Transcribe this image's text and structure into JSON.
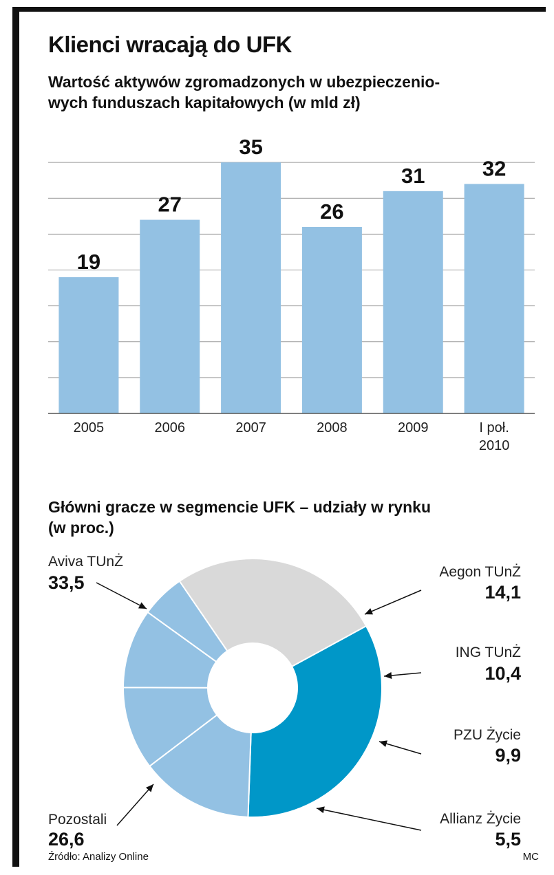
{
  "title": "Klienci wracają do UFK",
  "subtitle_lines": [
    "Wartość aktywów zgromadzonych w ubezpieczenio-",
    "wych funduszach kapitałowych (w mld zł)"
  ],
  "pie_title_lines": [
    "Główni gracze w segmencie UFK – udziały w rynku",
    "(w proc.)"
  ],
  "source": "Źródło: Analizy Online",
  "credit": "MC",
  "colors": {
    "bar": "#93c1e3",
    "grid": "#9a9a9a",
    "aviva": "#0097c8",
    "others_light_blue": "#93c1e3",
    "pozostali": "#d9d9d9"
  },
  "chart_data": [
    {
      "type": "bar",
      "categories": [
        "2005",
        "2006",
        "2007",
        "2008",
        "2009",
        "I poł. 2010"
      ],
      "category_lines": [
        [
          "2005"
        ],
        [
          "2006"
        ],
        [
          "2007"
        ],
        [
          "2008"
        ],
        [
          "2009"
        ],
        [
          "I poł.",
          "2010"
        ]
      ],
      "values": [
        19,
        27,
        35,
        26,
        31,
        32
      ],
      "ylim": [
        0,
        40
      ],
      "grid": true,
      "grid_step": 5
    },
    {
      "type": "pie",
      "style": "donut",
      "slices": [
        {
          "name": "Aviva TUnŻ",
          "value": 33.5,
          "label": "33,5",
          "color": "#0097c8"
        },
        {
          "name": "Aegon TUnŻ",
          "value": 14.1,
          "label": "14,1",
          "color": "#93c1e3"
        },
        {
          "name": "ING TUnŻ",
          "value": 10.4,
          "label": "10,4",
          "color": "#93c1e3"
        },
        {
          "name": "PZU Życie",
          "value": 9.9,
          "label": "9,9",
          "color": "#93c1e3"
        },
        {
          "name": "Allianz Życie",
          "value": 5.5,
          "label": "5,5",
          "color": "#93c1e3"
        },
        {
          "name": "Pozostali",
          "value": 26.6,
          "label": "26,6",
          "color": "#d9d9d9"
        }
      ]
    }
  ]
}
